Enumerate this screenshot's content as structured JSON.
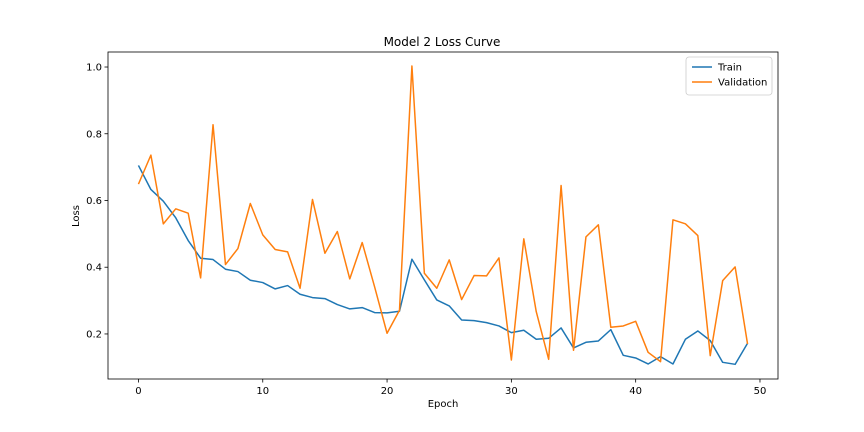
{
  "chart_data": {
    "type": "line",
    "title": "Model 2 Loss Curve",
    "xlabel": "Epoch",
    "ylabel": "Loss",
    "xlim": [
      -2.45,
      51.45
    ],
    "ylim": [
      0.065,
      1.045
    ],
    "xticks": [
      0,
      10,
      20,
      30,
      40,
      50
    ],
    "yticks": [
      0.2,
      0.4,
      0.6,
      0.8,
      1.0
    ],
    "ytick_labels": [
      "0.2",
      "0.4",
      "0.6",
      "0.8",
      "1.0"
    ],
    "grid": false,
    "legend": "top-right",
    "x": [
      0,
      1,
      2,
      3,
      4,
      5,
      6,
      7,
      8,
      9,
      10,
      11,
      12,
      13,
      14,
      15,
      16,
      17,
      18,
      19,
      20,
      21,
      22,
      23,
      24,
      25,
      26,
      27,
      28,
      29,
      30,
      31,
      32,
      33,
      34,
      35,
      36,
      37,
      38,
      39,
      40,
      41,
      42,
      43,
      44,
      45,
      46,
      47,
      48,
      49
    ],
    "series": [
      {
        "name": "Train",
        "color": "#1f77b4",
        "values": [
          0.705,
          0.633,
          0.598,
          0.548,
          0.48,
          0.427,
          0.423,
          0.394,
          0.387,
          0.361,
          0.354,
          0.335,
          0.345,
          0.319,
          0.309,
          0.306,
          0.288,
          0.275,
          0.279,
          0.264,
          0.263,
          0.268,
          0.424,
          0.362,
          0.302,
          0.284,
          0.242,
          0.24,
          0.234,
          0.224,
          0.204,
          0.211,
          0.184,
          0.187,
          0.218,
          0.158,
          0.175,
          0.179,
          0.213,
          0.136,
          0.128,
          0.11,
          0.132,
          0.11,
          0.184,
          0.209,
          0.18,
          0.115,
          0.109,
          0.172
        ]
      },
      {
        "name": "Validation",
        "color": "#ff7f0e",
        "values": [
          0.649,
          0.736,
          0.53,
          0.575,
          0.562,
          0.368,
          0.827,
          0.408,
          0.456,
          0.591,
          0.497,
          0.453,
          0.446,
          0.337,
          0.603,
          0.442,
          0.507,
          0.365,
          0.474,
          0.341,
          0.202,
          0.271,
          1.003,
          0.382,
          0.337,
          0.422,
          0.303,
          0.375,
          0.374,
          0.428,
          0.122,
          0.485,
          0.267,
          0.124,
          0.645,
          0.151,
          0.491,
          0.527,
          0.22,
          0.224,
          0.238,
          0.145,
          0.117,
          0.542,
          0.53,
          0.495,
          0.135,
          0.36,
          0.401,
          0.17
        ]
      }
    ]
  }
}
